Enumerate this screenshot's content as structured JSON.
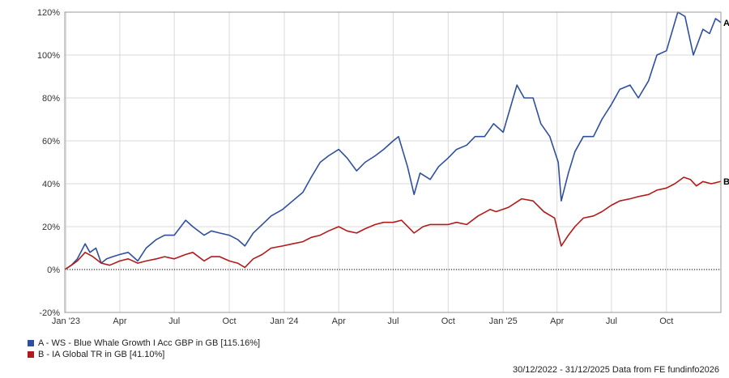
{
  "chart_data": {
    "type": "line",
    "ylim": [
      -20,
      120
    ],
    "y_ticks": [
      "-20%",
      "0%",
      "20%",
      "40%",
      "60%",
      "80%",
      "100%",
      "120%"
    ],
    "x_ticks": [
      "Jan '23",
      "Apr",
      "Jul",
      "Oct",
      "Jan '24",
      "Apr",
      "Jul",
      "Oct",
      "Jan '25",
      "Apr",
      "Jul",
      "Oct"
    ],
    "grid": true,
    "series": [
      {
        "id": "A",
        "name": "A - WS - Blue Whale Growth I Acc GBP in GB [115.16%]",
        "color": "#2e4f9e",
        "points": [
          [
            "2022-12-30",
            0
          ],
          [
            "2023-01-10",
            2
          ],
          [
            "2023-01-20",
            5
          ],
          [
            "2023-02-02",
            12
          ],
          [
            "2023-02-10",
            8
          ],
          [
            "2023-02-20",
            10
          ],
          [
            "2023-03-01",
            3
          ],
          [
            "2023-03-10",
            5
          ],
          [
            "2023-03-20",
            6
          ],
          [
            "2023-04-01",
            7
          ],
          [
            "2023-04-15",
            8
          ],
          [
            "2023-05-01",
            4
          ],
          [
            "2023-05-15",
            10
          ],
          [
            "2023-06-01",
            14
          ],
          [
            "2023-06-15",
            16
          ],
          [
            "2023-07-01",
            16
          ],
          [
            "2023-07-20",
            23
          ],
          [
            "2023-08-01",
            20
          ],
          [
            "2023-08-20",
            16
          ],
          [
            "2023-09-01",
            18
          ],
          [
            "2023-09-15",
            17
          ],
          [
            "2023-10-01",
            16
          ],
          [
            "2023-10-15",
            14
          ],
          [
            "2023-10-27",
            11
          ],
          [
            "2023-11-10",
            17
          ],
          [
            "2023-11-25",
            21
          ],
          [
            "2023-12-10",
            25
          ],
          [
            "2023-12-29",
            28
          ],
          [
            "2024-01-15",
            32
          ],
          [
            "2024-02-01",
            36
          ],
          [
            "2024-02-15",
            43
          ],
          [
            "2024-03-01",
            50
          ],
          [
            "2024-03-15",
            53
          ],
          [
            "2024-04-01",
            56
          ],
          [
            "2024-04-15",
            52
          ],
          [
            "2024-05-01",
            46
          ],
          [
            "2024-05-15",
            50
          ],
          [
            "2024-06-01",
            53
          ],
          [
            "2024-06-15",
            56
          ],
          [
            "2024-07-01",
            60
          ],
          [
            "2024-07-10",
            62
          ],
          [
            "2024-07-25",
            48
          ],
          [
            "2024-08-05",
            35
          ],
          [
            "2024-08-15",
            45
          ],
          [
            "2024-09-01",
            42
          ],
          [
            "2024-09-15",
            48
          ],
          [
            "2024-10-01",
            52
          ],
          [
            "2024-10-15",
            56
          ],
          [
            "2024-11-01",
            58
          ],
          [
            "2024-11-15",
            62
          ],
          [
            "2024-12-01",
            62
          ],
          [
            "2024-12-16",
            68
          ],
          [
            "2025-01-01",
            64
          ],
          [
            "2025-01-24",
            86
          ],
          [
            "2025-02-05",
            80
          ],
          [
            "2025-02-20",
            80
          ],
          [
            "2025-03-05",
            68
          ],
          [
            "2025-03-20",
            62
          ],
          [
            "2025-04-03",
            50
          ],
          [
            "2025-04-08",
            32
          ],
          [
            "2025-04-20",
            45
          ],
          [
            "2025-05-01",
            55
          ],
          [
            "2025-05-15",
            62
          ],
          [
            "2025-06-01",
            62
          ],
          [
            "2025-06-15",
            70
          ],
          [
            "2025-07-01",
            77
          ],
          [
            "2025-07-15",
            84
          ],
          [
            "2025-08-01",
            86
          ],
          [
            "2025-08-15",
            80
          ],
          [
            "2025-09-01",
            88
          ],
          [
            "2025-09-15",
            100
          ],
          [
            "2025-10-01",
            102
          ],
          [
            "2025-10-20",
            120
          ],
          [
            "2025-11-01",
            118
          ],
          [
            "2025-11-15",
            100
          ],
          [
            "2025-12-01",
            112
          ],
          [
            "2025-12-12",
            110
          ],
          [
            "2025-12-22",
            117
          ],
          [
            "2025-12-31",
            115.16
          ]
        ]
      },
      {
        "id": "B",
        "name": "B - IA Global TR in GB [41.10%]",
        "color": "#b21a1a",
        "points": [
          [
            "2022-12-30",
            0
          ],
          [
            "2023-01-10",
            2
          ],
          [
            "2023-01-20",
            4
          ],
          [
            "2023-02-02",
            8
          ],
          [
            "2023-02-15",
            6
          ],
          [
            "2023-03-01",
            3
          ],
          [
            "2023-03-15",
            2
          ],
          [
            "2023-04-01",
            4
          ],
          [
            "2023-04-15",
            5
          ],
          [
            "2023-05-01",
            3
          ],
          [
            "2023-05-15",
            4
          ],
          [
            "2023-06-01",
            5
          ],
          [
            "2023-06-15",
            6
          ],
          [
            "2023-07-01",
            5
          ],
          [
            "2023-07-20",
            7
          ],
          [
            "2023-08-01",
            8
          ],
          [
            "2023-08-20",
            4
          ],
          [
            "2023-09-01",
            6
          ],
          [
            "2023-09-15",
            6
          ],
          [
            "2023-10-01",
            4
          ],
          [
            "2023-10-15",
            3
          ],
          [
            "2023-10-27",
            1
          ],
          [
            "2023-11-10",
            5
          ],
          [
            "2023-11-25",
            7
          ],
          [
            "2023-12-10",
            10
          ],
          [
            "2023-12-29",
            11
          ],
          [
            "2024-01-15",
            12
          ],
          [
            "2024-02-01",
            13
          ],
          [
            "2024-02-15",
            15
          ],
          [
            "2024-03-01",
            16
          ],
          [
            "2024-03-15",
            18
          ],
          [
            "2024-04-01",
            20
          ],
          [
            "2024-04-15",
            18
          ],
          [
            "2024-05-01",
            17
          ],
          [
            "2024-05-15",
            19
          ],
          [
            "2024-06-01",
            21
          ],
          [
            "2024-06-15",
            22
          ],
          [
            "2024-07-01",
            22
          ],
          [
            "2024-07-15",
            23
          ],
          [
            "2024-08-05",
            17
          ],
          [
            "2024-08-20",
            20
          ],
          [
            "2024-09-01",
            21
          ],
          [
            "2024-09-15",
            21
          ],
          [
            "2024-10-01",
            21
          ],
          [
            "2024-10-15",
            22
          ],
          [
            "2024-11-01",
            21
          ],
          [
            "2024-11-20",
            25
          ],
          [
            "2024-12-10",
            28
          ],
          [
            "2024-12-20",
            27
          ],
          [
            "2025-01-10",
            29
          ],
          [
            "2025-02-01",
            33
          ],
          [
            "2025-02-20",
            32
          ],
          [
            "2025-03-10",
            27
          ],
          [
            "2025-03-28",
            24
          ],
          [
            "2025-04-08",
            11
          ],
          [
            "2025-04-20",
            16
          ],
          [
            "2025-05-01",
            20
          ],
          [
            "2025-05-15",
            24
          ],
          [
            "2025-06-01",
            25
          ],
          [
            "2025-06-15",
            27
          ],
          [
            "2025-07-01",
            30
          ],
          [
            "2025-07-15",
            32
          ],
          [
            "2025-08-01",
            33
          ],
          [
            "2025-08-15",
            34
          ],
          [
            "2025-09-01",
            35
          ],
          [
            "2025-09-15",
            37
          ],
          [
            "2025-10-01",
            38
          ],
          [
            "2025-10-15",
            40
          ],
          [
            "2025-10-30",
            43
          ],
          [
            "2025-11-10",
            42
          ],
          [
            "2025-11-20",
            39
          ],
          [
            "2025-12-01",
            41
          ],
          [
            "2025-12-15",
            40
          ],
          [
            "2025-12-31",
            41.1
          ]
        ]
      }
    ]
  },
  "footer": {
    "range": "30/12/2022 - 31/12/2025",
    "source": "Data from FE fundinfo2026"
  }
}
